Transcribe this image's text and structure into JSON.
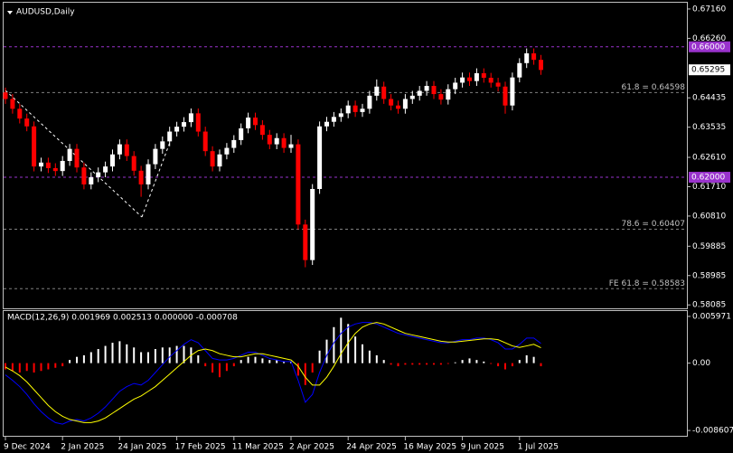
{
  "chart_data": [
    {
      "type": "candlestick",
      "title": "AUDUSD,Daily",
      "up_color": "#ffffff",
      "down_color": "#ff0000",
      "ylim": [
        0.5798,
        0.6738
      ],
      "yticks": [
        {
          "value": 0.6716,
          "label": "0.67160"
        },
        {
          "value": 0.6626,
          "label": "0.66260"
        },
        {
          "value": 0.64435,
          "label": "0.64435"
        },
        {
          "value": 0.63535,
          "label": "0.63535"
        },
        {
          "value": 0.6261,
          "label": "0.62610"
        },
        {
          "value": 0.6171,
          "label": "0.61710"
        },
        {
          "value": 0.6081,
          "label": "0.60810"
        },
        {
          "value": 0.59885,
          "label": "0.59885"
        },
        {
          "value": 0.58985,
          "label": "0.58985"
        },
        {
          "value": 0.58085,
          "label": "0.58085"
        }
      ],
      "xticks": [
        {
          "value": 0,
          "label": "9 Dec 2024"
        },
        {
          "value": 8,
          "label": "2 Jan 2025"
        },
        {
          "value": 16,
          "label": "24 Jan 2025"
        },
        {
          "value": 24,
          "label": "17 Feb 2025"
        },
        {
          "value": 32,
          "label": "11 Mar 2025"
        },
        {
          "value": 40,
          "label": "2 Apr 2025"
        },
        {
          "value": 48,
          "label": "24 Apr 2025"
        },
        {
          "value": 56,
          "label": "16 May 2025"
        },
        {
          "value": 64,
          "label": "9 Jun 2025"
        },
        {
          "value": 72,
          "label": "1 Jul 2025"
        }
      ],
      "levels": [
        {
          "value": 0.66,
          "label": "0.66000",
          "color": "#9932cc",
          "style": "axis"
        },
        {
          "value": 0.62,
          "label": "0.62000",
          "color": "#9932cc",
          "style": "axis"
        },
        {
          "value": 0.64598,
          "label": "61.8 = 0.64598",
          "color": "#808080",
          "style": "inline"
        },
        {
          "value": 0.60407,
          "label": "78.6 = 0.60407",
          "color": "#808080",
          "style": "inline"
        },
        {
          "value": 0.58583,
          "label": "FE 61.8 = 0.58583",
          "color": "#808080",
          "style": "inline"
        }
      ],
      "last_price": 0.65295,
      "ohlc": [
        [
          0.646,
          0.6475,
          0.6425,
          0.644
        ],
        [
          0.644,
          0.6455,
          0.6395,
          0.641
        ],
        [
          0.641,
          0.6425,
          0.6365,
          0.638
        ],
        [
          0.638,
          0.6395,
          0.6341,
          0.6356
        ],
        [
          0.6356,
          0.6371,
          0.6218,
          0.6233
        ],
        [
          0.6233,
          0.626,
          0.6218,
          0.6245
        ],
        [
          0.6245,
          0.626,
          0.6213,
          0.6228
        ],
        [
          0.6228,
          0.6243,
          0.6204,
          0.6219
        ],
        [
          0.6219,
          0.6265,
          0.6204,
          0.625
        ],
        [
          0.625,
          0.6302,
          0.6235,
          0.6287
        ],
        [
          0.6287,
          0.6302,
          0.6215,
          0.623
        ],
        [
          0.623,
          0.6245,
          0.6163,
          0.6178
        ],
        [
          0.6178,
          0.6215,
          0.6163,
          0.62
        ],
        [
          0.62,
          0.623,
          0.6185,
          0.6215
        ],
        [
          0.6215,
          0.6248,
          0.62,
          0.6233
        ],
        [
          0.6233,
          0.6285,
          0.6218,
          0.627
        ],
        [
          0.627,
          0.6316,
          0.6255,
          0.6301
        ],
        [
          0.6301,
          0.6316,
          0.625,
          0.6265
        ],
        [
          0.6265,
          0.628,
          0.6205,
          0.622
        ],
        [
          0.622,
          0.6235,
          0.614,
          0.6178
        ],
        [
          0.6178,
          0.6255,
          0.6163,
          0.624
        ],
        [
          0.624,
          0.6302,
          0.6225,
          0.6287
        ],
        [
          0.6287,
          0.6325,
          0.6272,
          0.631
        ],
        [
          0.631,
          0.6355,
          0.6295,
          0.634
        ],
        [
          0.634,
          0.637,
          0.6325,
          0.6355
        ],
        [
          0.6355,
          0.6384,
          0.634,
          0.6369
        ],
        [
          0.6369,
          0.6411,
          0.6354,
          0.6396
        ],
        [
          0.6396,
          0.6411,
          0.6325,
          0.634
        ],
        [
          0.634,
          0.6355,
          0.6265,
          0.628
        ],
        [
          0.628,
          0.6295,
          0.6218,
          0.6233
        ],
        [
          0.6233,
          0.6285,
          0.6218,
          0.627
        ],
        [
          0.627,
          0.6305,
          0.6255,
          0.629
        ],
        [
          0.629,
          0.6329,
          0.6275,
          0.6314
        ],
        [
          0.6314,
          0.6365,
          0.6299,
          0.635
        ],
        [
          0.635,
          0.6398,
          0.6335,
          0.6383
        ],
        [
          0.6383,
          0.6398,
          0.6345,
          0.636
        ],
        [
          0.636,
          0.6375,
          0.6315,
          0.633
        ],
        [
          0.633,
          0.6345,
          0.6286,
          0.6301
        ],
        [
          0.6301,
          0.6335,
          0.6286,
          0.632
        ],
        [
          0.632,
          0.6335,
          0.6275,
          0.629
        ],
        [
          0.629,
          0.633,
          0.6275,
          0.6301
        ],
        [
          0.6301,
          0.6316,
          0.604,
          0.6055
        ],
        [
          0.6055,
          0.607,
          0.5924,
          0.5946
        ],
        [
          0.5946,
          0.6179,
          0.5931,
          0.6164
        ],
        [
          0.6164,
          0.6371,
          0.6149,
          0.6356
        ],
        [
          0.6356,
          0.6385,
          0.6341,
          0.637
        ],
        [
          0.637,
          0.64,
          0.6355,
          0.6385
        ],
        [
          0.6385,
          0.6411,
          0.637,
          0.6396
        ],
        [
          0.6396,
          0.6435,
          0.6381,
          0.642
        ],
        [
          0.642,
          0.6435,
          0.6385,
          0.64
        ],
        [
          0.64,
          0.6425,
          0.6385,
          0.641
        ],
        [
          0.641,
          0.6465,
          0.6395,
          0.645
        ],
        [
          0.645,
          0.65,
          0.6435,
          0.6478
        ],
        [
          0.6478,
          0.6493,
          0.6425,
          0.644
        ],
        [
          0.644,
          0.6455,
          0.6405,
          0.642
        ],
        [
          0.642,
          0.6435,
          0.6395,
          0.641
        ],
        [
          0.641,
          0.6455,
          0.6395,
          0.644
        ],
        [
          0.644,
          0.6465,
          0.6425,
          0.645
        ],
        [
          0.645,
          0.648,
          0.6435,
          0.6465
        ],
        [
          0.6465,
          0.6495,
          0.645,
          0.648
        ],
        [
          0.648,
          0.6495,
          0.644,
          0.6455
        ],
        [
          0.6455,
          0.647,
          0.6423,
          0.6438
        ],
        [
          0.6438,
          0.6485,
          0.6423,
          0.647
        ],
        [
          0.647,
          0.6505,
          0.6455,
          0.649
        ],
        [
          0.649,
          0.6521,
          0.6475,
          0.6506
        ],
        [
          0.6506,
          0.6521,
          0.648,
          0.6495
        ],
        [
          0.6495,
          0.6534,
          0.648,
          0.6519
        ],
        [
          0.6519,
          0.6534,
          0.649,
          0.6505
        ],
        [
          0.6505,
          0.652,
          0.6475,
          0.649
        ],
        [
          0.649,
          0.6505,
          0.6463,
          0.6478
        ],
        [
          0.6478,
          0.6493,
          0.6395,
          0.642
        ],
        [
          0.642,
          0.6521,
          0.6405,
          0.6506
        ],
        [
          0.6506,
          0.6565,
          0.6491,
          0.655
        ],
        [
          0.655,
          0.6595,
          0.6535,
          0.658
        ],
        [
          0.658,
          0.6595,
          0.6545,
          0.656
        ],
        [
          0.656,
          0.6575,
          0.6514,
          0.6529
        ]
      ]
    },
    {
      "type": "macd",
      "title": "MACD(12,26,9) 0.001969 0.002513 0.000000 -0.000708",
      "ylim": [
        -0.00929,
        0.00677
      ],
      "yticks": [
        0.005971,
        {
          "value": 0,
          "label": "0.00"
        },
        -0.008607
      ],
      "pos_color": "#ffffff",
      "neg_color": "#ff0000",
      "histogram": [
        -0.0008,
        -0.001,
        -0.0012,
        -0.001,
        -0.0012,
        -0.001,
        -0.0008,
        -0.0006,
        -0.0004,
        0.0004,
        0.0008,
        0.001,
        0.0014,
        0.0018,
        0.0022,
        0.0026,
        0.0028,
        0.0024,
        0.002,
        0.0014,
        0.0014,
        0.0018,
        0.002,
        0.002,
        0.0022,
        0.0022,
        0.002,
        0.001,
        -0.0004,
        -0.0012,
        -0.0018,
        -0.001,
        -0.0004,
        0.0004,
        0.0008,
        0.0008,
        0.0006,
        0.0004,
        0.0004,
        0.0002,
        0.0002,
        -0.0016,
        -0.0028,
        -0.0012,
        0.0016,
        0.003,
        0.0046,
        0.0058,
        0.005,
        0.0034,
        0.0024,
        0.0016,
        0.001,
        0.0004,
        -0.0002,
        -0.0004,
        -0.0002,
        -0.0002,
        -0.0002,
        -0.0002,
        -0.0002,
        -0.0002,
        -0.0001,
        0.0001,
        0.0004,
        0.0006,
        0.0004,
        0.0002,
        -0.0001,
        -0.0004,
        -0.0008,
        -0.0004,
        0.0004,
        0.001,
        0.0008,
        -0.0004
      ],
      "series": [
        {
          "color": "#0000ff",
          "values": [
            -0.0015,
            -0.0022,
            -0.003,
            -0.004,
            -0.0052,
            -0.0062,
            -0.007,
            -0.0076,
            -0.0078,
            -0.0074,
            -0.0072,
            -0.0074,
            -0.007,
            -0.0064,
            -0.0056,
            -0.0046,
            -0.0036,
            -0.003,
            -0.0026,
            -0.0028,
            -0.0022,
            -0.0012,
            -0.0002,
            0.0008,
            0.0016,
            0.0024,
            0.003,
            0.0026,
            0.0016,
            0.0006,
            0.0004,
            0.0004,
            0.0006,
            0.001,
            0.0014,
            0.0014,
            0.001,
            0.0006,
            0.0004,
            0.0002,
            0.0002,
            -0.0022,
            -0.005,
            -0.004,
            -0.0012,
            0.001,
            0.0026,
            0.0038,
            0.0046,
            0.005,
            0.0052,
            0.0052,
            0.005,
            0.0046,
            0.0042,
            0.0038,
            0.0036,
            0.0034,
            0.0032,
            0.003,
            0.0028,
            0.0026,
            0.0026,
            0.0028,
            0.003,
            0.003,
            0.0032,
            0.0032,
            0.003,
            0.0026,
            0.0018,
            0.0018,
            0.0024,
            0.0032,
            0.0032,
            0.002513
          ]
        },
        {
          "color": "#ffff00",
          "values": [
            -0.0005,
            -0.001,
            -0.0016,
            -0.0024,
            -0.0034,
            -0.0044,
            -0.0054,
            -0.0062,
            -0.0068,
            -0.0072,
            -0.0074,
            -0.0076,
            -0.0076,
            -0.0074,
            -0.007,
            -0.0064,
            -0.0058,
            -0.0052,
            -0.0046,
            -0.0042,
            -0.0036,
            -0.003,
            -0.0022,
            -0.0014,
            -0.0006,
            0.0002,
            0.001,
            0.0016,
            0.0018,
            0.0016,
            0.0012,
            0.001,
            0.0008,
            0.0008,
            0.001,
            0.0012,
            0.0012,
            0.001,
            0.0008,
            0.0006,
            0.0004,
            -0.0004,
            -0.0018,
            -0.0028,
            -0.0028,
            -0.0018,
            -0.0004,
            0.0012,
            0.0026,
            0.0038,
            0.0046,
            0.005,
            0.0052,
            0.005,
            0.0046,
            0.0042,
            0.0038,
            0.0036,
            0.0034,
            0.0032,
            0.003,
            0.0028,
            0.0027,
            0.0027,
            0.0028,
            0.0029,
            0.003,
            0.0031,
            0.0031,
            0.003,
            0.0026,
            0.0022,
            0.002,
            0.0022,
            0.0024,
            0.001969
          ]
        }
      ]
    }
  ]
}
